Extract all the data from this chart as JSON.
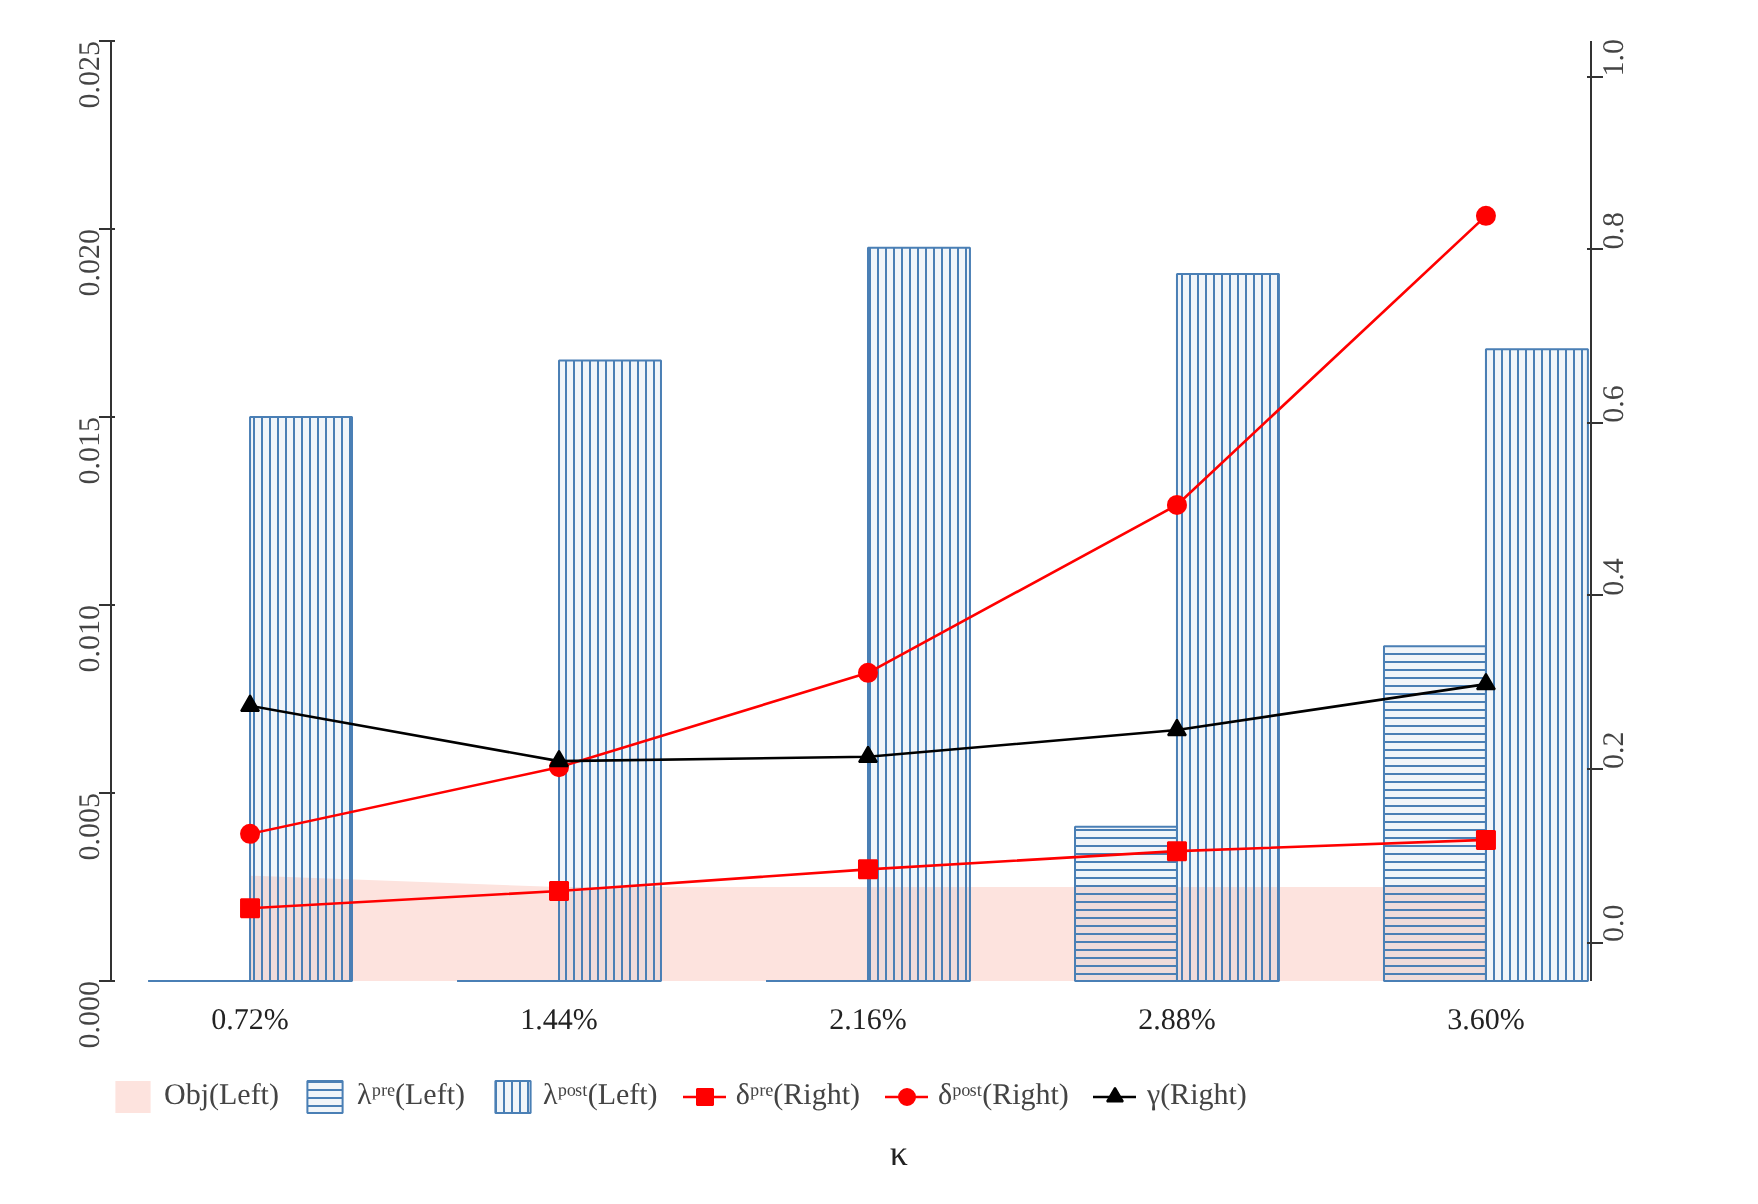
{
  "chart_data": {
    "type": "bar",
    "categories": [
      "0.72%",
      "1.44%",
      "2.16%",
      "2.88%",
      "3.60%"
    ],
    "xlabel": "κ",
    "ylim": [
      0,
      0.025
    ],
    "yticks": [
      {
        "value": 0,
        "label": "0.000"
      },
      {
        "value": 0.005,
        "label": "0.005"
      },
      {
        "value": 0.01,
        "label": "0.010"
      },
      {
        "value": 0.015,
        "label": "0.015"
      },
      {
        "value": 0.02,
        "label": "0.020"
      },
      {
        "value": 0.025,
        "label": "0.025"
      }
    ],
    "y2lim": [
      -0.045,
      1.041
    ],
    "y2ticks": [
      {
        "value": 0,
        "label": "0.0"
      },
      {
        "value": 0.2,
        "label": "0.2"
      },
      {
        "value": 0.4,
        "label": "0.4"
      },
      {
        "value": 0.6,
        "label": "0.6"
      },
      {
        "value": 0.8,
        "label": "0.8"
      },
      {
        "value": 1.0,
        "label": "1.0"
      }
    ],
    "grid": false,
    "legend": "bottom",
    "series": [
      {
        "name": "Obj(Left)",
        "type": "area",
        "color": "#fde3de",
        "values": [
          0.0028,
          0.0025,
          0.0025,
          0.0025,
          0.0025
        ]
      },
      {
        "name": "λᵖʳᵉ(Left)",
        "color": "#4a7fb5",
        "values": [
          0,
          0,
          0,
          0.0041,
          0.0089
        ]
      },
      {
        "name": "λᵖᵒˢᵗ(Left)",
        "color": "#4a7fb5",
        "values": [
          0.015,
          0.0165,
          0.0195,
          0.0188,
          0.0168
        ]
      },
      {
        "name": "δᵖʳᵉ(Right)",
        "type": "line",
        "axis": "y2",
        "marker": "square",
        "color": "#ff0000",
        "values": [
          0.039,
          0.059,
          0.084,
          0.105,
          0.118
        ]
      },
      {
        "name": "δᵖᵒˢᵗ(Right)",
        "type": "line",
        "axis": "y2",
        "marker": "circle",
        "color": "#ff0000",
        "values": [
          0.125,
          0.202,
          0.311,
          0.505,
          0.839
        ]
      },
      {
        "name": "γ(Right)",
        "type": "line",
        "axis": "y2",
        "marker": "triangle",
        "color": "#000000",
        "values": [
          0.273,
          0.209,
          0.214,
          0.245,
          0.298
        ]
      }
    ]
  }
}
